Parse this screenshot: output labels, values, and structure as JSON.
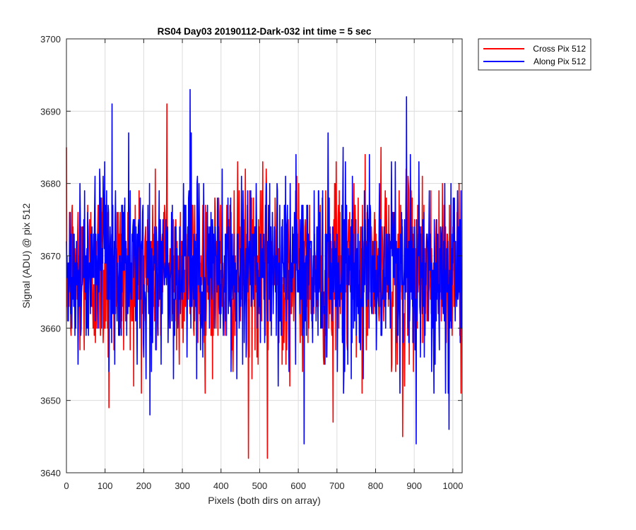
{
  "chart_data": {
    "type": "line",
    "title": "RS04 Day03 20190112-Dark-032 int time = 5 sec",
    "xlabel": "Pixels (both dirs on array)",
    "ylabel": "Signal (ADU) @ pix 512",
    "xlim": [
      0,
      1024
    ],
    "ylim": [
      3640,
      3700
    ],
    "xticks": [
      0,
      100,
      200,
      300,
      400,
      500,
      600,
      700,
      800,
      900,
      1000
    ],
    "yticks": [
      3640,
      3650,
      3660,
      3670,
      3680,
      3690,
      3700
    ],
    "grid": true,
    "legend_position": "outside top-right",
    "series_stats": {
      "mean": 3668,
      "typical_range": [
        3655,
        3682
      ],
      "points_per_series": 1024
    },
    "series": [
      {
        "name": "Cross Pix 512",
        "color": "#ff0000",
        "extremes": [
          {
            "x": 110,
            "y": 3649
          },
          {
            "x": 260,
            "y": 3691
          },
          {
            "x": 471,
            "y": 3642
          },
          {
            "x": 520,
            "y": 3642
          },
          {
            "x": 870,
            "y": 3645
          },
          {
            "x": 690,
            "y": 3647
          }
        ]
      },
      {
        "name": "Along Pix 512",
        "color": "#0000ff",
        "extremes": [
          {
            "x": 118,
            "y": 3691
          },
          {
            "x": 320,
            "y": 3693
          },
          {
            "x": 216,
            "y": 3648
          },
          {
            "x": 615,
            "y": 3644
          },
          {
            "x": 880,
            "y": 3692
          },
          {
            "x": 905,
            "y": 3644
          },
          {
            "x": 990,
            "y": 3646
          }
        ]
      }
    ]
  }
}
